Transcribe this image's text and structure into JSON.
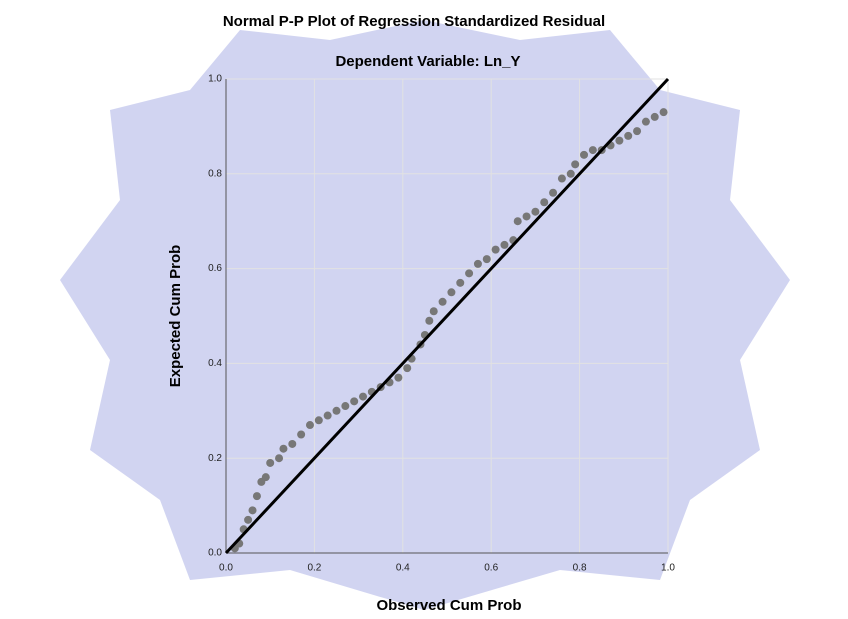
{
  "chart_data": {
    "type": "scatter",
    "title": "Normal P-P Plot of Regression Standardized Residual",
    "subtitle": "Dependent Variable: Ln_Y",
    "x_label": "Observed Cum Prob",
    "y_label": "Expected Cum Prob",
    "xlim": [
      0,
      1
    ],
    "ylim": [
      0,
      1
    ],
    "xticks": [
      {
        "value": 0,
        "label": "0.0"
      },
      0.2,
      0.4,
      0.6,
      0.8,
      {
        "value": 1,
        "label": "1.0"
      }
    ],
    "yticks": [
      {
        "value": 0,
        "label": "0.0"
      },
      0.2,
      0.4,
      0.6,
      0.8,
      {
        "value": 1,
        "label": "1.0"
      }
    ],
    "grid": true,
    "reference_line": true,
    "series": [
      {
        "color": "#777777",
        "x": [
          0.02,
          0.03,
          0.04,
          0.05,
          0.06,
          0.07,
          0.08,
          0.09,
          0.1,
          0.12,
          0.13,
          0.15,
          0.17,
          0.19,
          0.21,
          0.23,
          0.25,
          0.27,
          0.29,
          0.31,
          0.33,
          0.35,
          0.37,
          0.39,
          0.41,
          0.42,
          0.44,
          0.45,
          0.46,
          0.47,
          0.49,
          0.51,
          0.53,
          0.55,
          0.57,
          0.59,
          0.61,
          0.63,
          0.65,
          0.66,
          0.68,
          0.7,
          0.72,
          0.74,
          0.76,
          0.78,
          0.79,
          0.81,
          0.83,
          0.85,
          0.87,
          0.89,
          0.91,
          0.93,
          0.95,
          0.97,
          0.99
        ],
        "values": [
          0.01,
          0.02,
          0.05,
          0.07,
          0.09,
          0.12,
          0.15,
          0.16,
          0.19,
          0.2,
          0.22,
          0.23,
          0.25,
          0.27,
          0.28,
          0.29,
          0.3,
          0.31,
          0.32,
          0.33,
          0.34,
          0.35,
          0.36,
          0.37,
          0.39,
          0.41,
          0.44,
          0.46,
          0.49,
          0.51,
          0.53,
          0.55,
          0.57,
          0.59,
          0.61,
          0.62,
          0.64,
          0.65,
          0.66,
          0.7,
          0.71,
          0.72,
          0.74,
          0.76,
          0.79,
          0.8,
          0.82,
          0.84,
          0.85,
          0.85,
          0.86,
          0.87,
          0.88,
          0.89,
          0.91,
          0.92,
          0.93
        ]
      }
    ]
  }
}
